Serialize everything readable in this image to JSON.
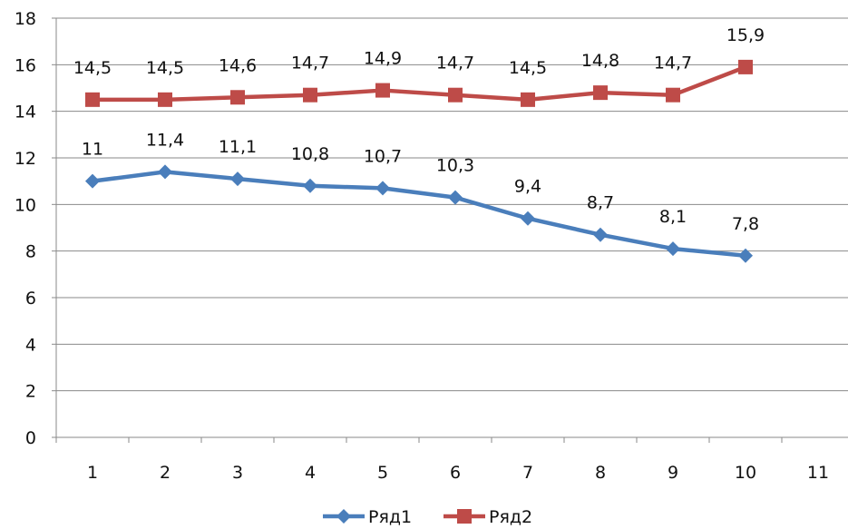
{
  "chart_data": {
    "type": "line",
    "x": [
      1,
      2,
      3,
      4,
      5,
      6,
      7,
      8,
      9,
      10
    ],
    "x_ticks": [
      "1",
      "2",
      "3",
      "4",
      "5",
      "6",
      "7",
      "8",
      "9",
      "10",
      "11"
    ],
    "ylim": [
      0,
      18
    ],
    "y_ticks": [
      "0",
      "2",
      "4",
      "6",
      "8",
      "10",
      "12",
      "14",
      "16",
      "18"
    ],
    "grid": true,
    "legend_position": "bottom",
    "series": [
      {
        "name": "Ряд1",
        "color": "#4A7EBB",
        "marker": "diamond",
        "values": [
          11,
          11.4,
          11.1,
          10.8,
          10.7,
          10.3,
          9.4,
          8.7,
          8.1,
          7.8
        ],
        "labels": [
          "11",
          "11,4",
          "11,1",
          "10,8",
          "10,7",
          "10,3",
          "9,4",
          "8,7",
          "8,1",
          "7,8"
        ]
      },
      {
        "name": "Ряд2",
        "color": "#BE4B48",
        "marker": "square",
        "values": [
          14.5,
          14.5,
          14.6,
          14.7,
          14.9,
          14.7,
          14.5,
          14.8,
          14.7,
          15.9
        ],
        "labels": [
          "14,5",
          "14,5",
          "14,6",
          "14,7",
          "14,9",
          "14,7",
          "14,5",
          "14,8",
          "14,7",
          "15,9"
        ]
      }
    ]
  }
}
